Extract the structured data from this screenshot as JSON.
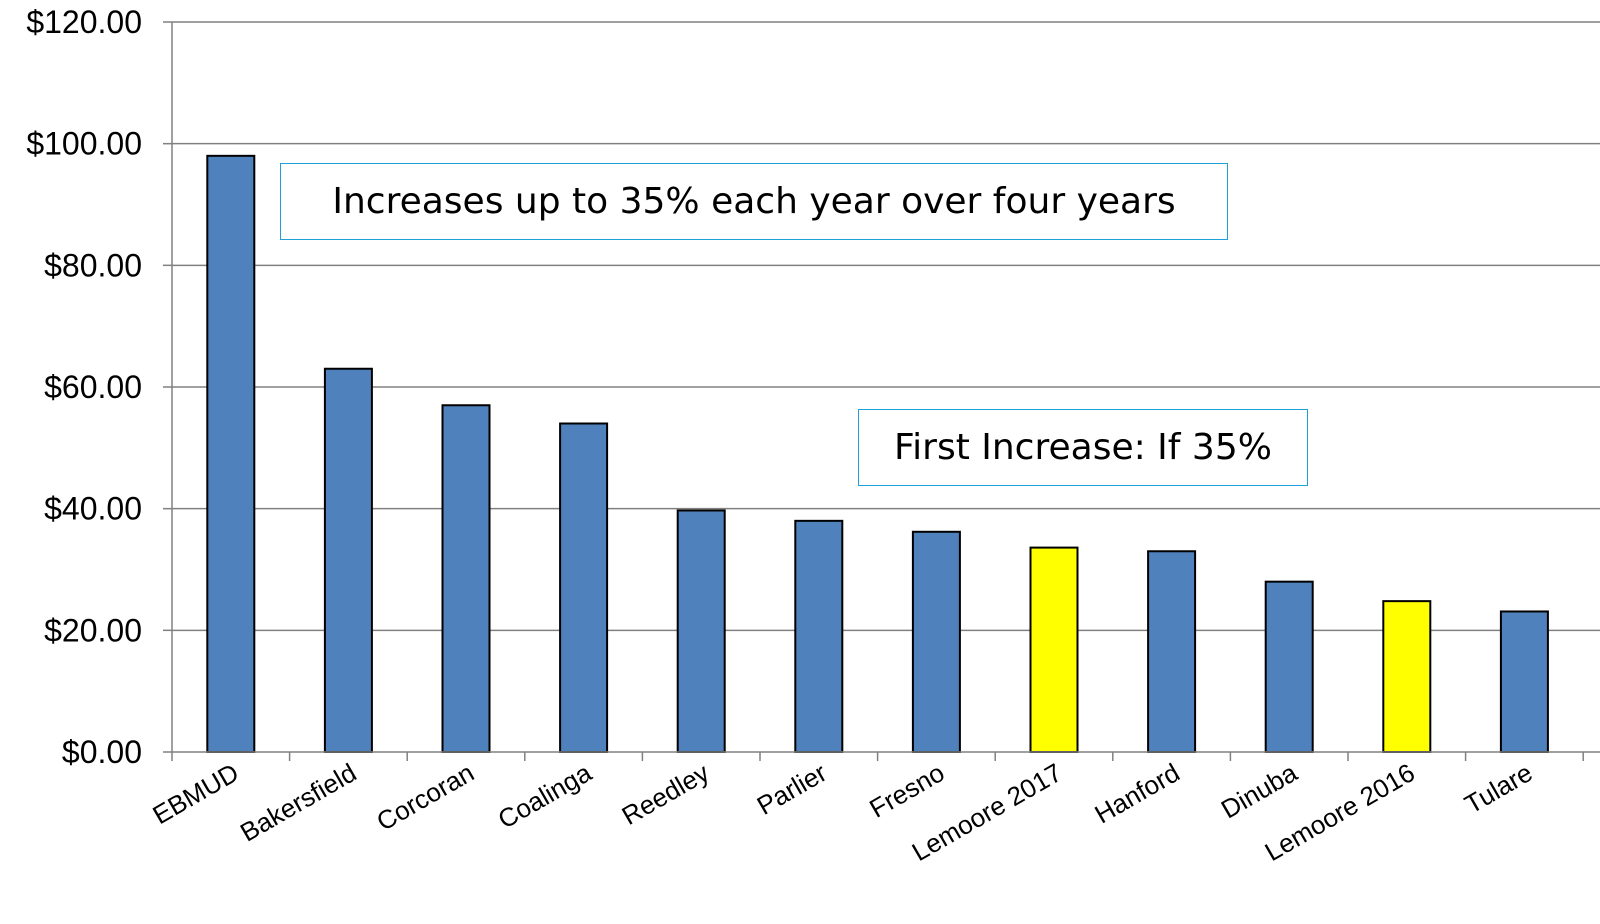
{
  "chart_data": {
    "type": "bar",
    "categories": [
      "EBMUD",
      "Bakersfield",
      "Corcoran",
      "Coalinga",
      "Reedley",
      "Parlier",
      "Fresno",
      "Lemoore 2017",
      "Hanford",
      "Dinuba",
      "Lemoore 2016",
      "Tulare"
    ],
    "values": [
      98.0,
      63.0,
      57.0,
      54.0,
      39.7,
      38.0,
      36.2,
      33.6,
      33.0,
      28.0,
      24.8,
      23.1
    ],
    "highlight": [
      "Lemoore 2017",
      "Lemoore 2016"
    ],
    "colors": {
      "bar": "#4f81bd",
      "highlight": "#ffff00",
      "grid": "#808080",
      "axis": "#808080",
      "annotation_border": "#1fa0d8"
    },
    "ylim": [
      0,
      120
    ],
    "yticks": [
      0,
      20,
      40,
      60,
      80,
      100,
      120
    ],
    "ytick_labels": [
      "$0.00",
      "$20.00",
      "$40.00",
      "$60.00",
      "$80.00",
      "$100.00",
      "$120.00"
    ],
    "grid": true,
    "title": "",
    "xlabel": "",
    "ylabel": ""
  },
  "annotations": [
    {
      "text": "Increases up to 35% each year over four years"
    },
    {
      "text": "First Increase: If 35%"
    }
  ]
}
